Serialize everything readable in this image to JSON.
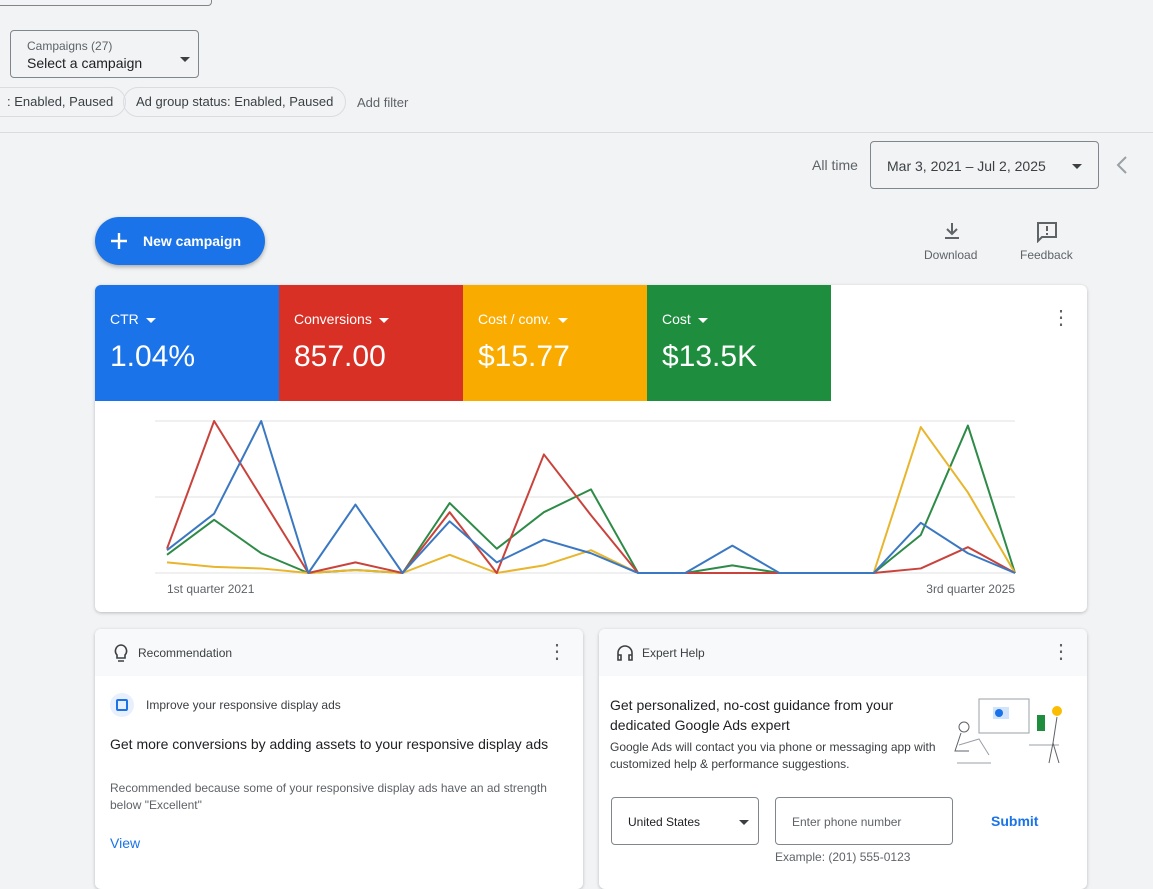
{
  "campaign_picker": {
    "label": "Campaigns (27)",
    "value": "Select a campaign"
  },
  "filters": [
    ": Enabled, Paused",
    "Ad group status: Enabled, Paused"
  ],
  "add_filter": "Add filter",
  "date_range": {
    "label": "All time",
    "value": "Mar 3, 2021 – Jul 2, 2025"
  },
  "new_campaign": "New campaign",
  "actions": [
    "Download",
    "Feedback"
  ],
  "metric_totals": [
    "1.04%",
    "857.00",
    "$15.77",
    "$13.5K"
  ],
  "chart_data": {
    "type": "line",
    "categories": [
      "1st quarter 2021",
      null,
      null,
      null,
      null,
      null,
      null,
      null,
      null,
      null,
      null,
      null,
      null,
      null,
      null,
      null,
      null,
      null,
      "3rd quarter 2025"
    ],
    "series": [
      {
        "name": "CTR",
        "color": "#1a73e8",
        "line_color": "#3b78c2",
        "values": [
          15,
          39,
          100,
          0,
          45,
          0,
          34,
          7,
          22,
          13,
          0,
          0,
          18,
          0,
          0,
          0,
          33,
          13,
          0
        ]
      },
      {
        "name": "Conversions",
        "color": "#d93025",
        "line_color": "#c9433c",
        "values": [
          16,
          100,
          50,
          0,
          7,
          0,
          40,
          0,
          78,
          38,
          0,
          0,
          0,
          0,
          0,
          0,
          3,
          17,
          0
        ]
      },
      {
        "name": "Cost / conv.",
        "color": "#f9ab00",
        "line_color": "#e8b52c",
        "values": [
          7,
          4,
          3,
          0,
          2,
          0,
          12,
          0,
          5,
          15,
          0,
          0,
          0,
          0,
          0,
          0,
          96,
          53,
          0
        ]
      },
      {
        "name": "Cost",
        "color": "#1e8e3e",
        "line_color": "#2e8b47",
        "values": [
          12,
          35,
          13,
          0,
          2,
          0,
          46,
          16,
          40,
          55,
          0,
          0,
          5,
          0,
          0,
          0,
          25,
          97,
          0
        ]
      }
    ],
    "ylim": [
      0,
      100
    ],
    "yticks": [
      0,
      50,
      100
    ],
    "grid": true
  },
  "recommendation": {
    "header": "Recommendation",
    "item": "Improve your responsive display ads",
    "headline": "Get more conversions by adding assets to your responsive display ads",
    "reason": "Recommended because some of your responsive display ads have an ad strength below \"Excellent\"",
    "link": "View"
  },
  "expert_help": {
    "header": "Expert Help",
    "headline": "Get personalized, no-cost guidance from your dedicated Google Ads expert",
    "body": "Google Ads will contact you via phone or messaging app with customized help & performance suggestions.",
    "country": "United States",
    "phone_placeholder": "Enter phone number",
    "submit": "Submit",
    "example": "Example: (201) 555-0123"
  }
}
